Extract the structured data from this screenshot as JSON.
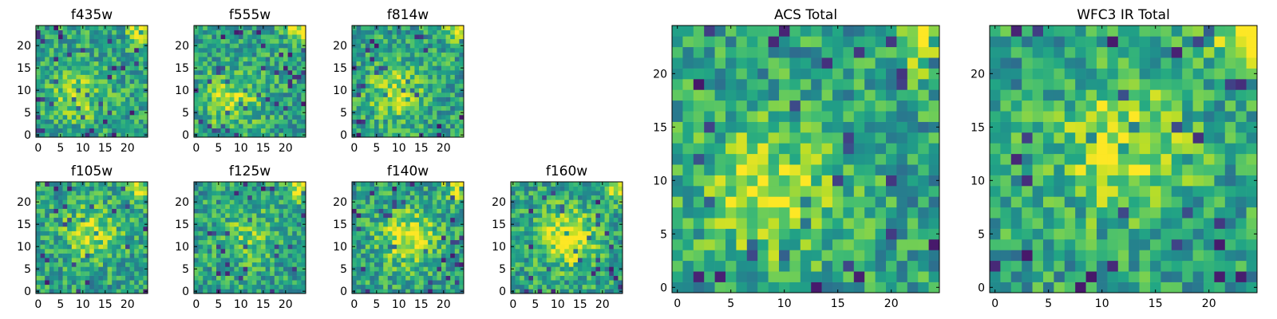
{
  "chart_data": [
    {
      "type": "heatmap",
      "title": "f435w",
      "xticks": [
        0,
        5,
        10,
        15,
        20
      ],
      "yticks": [
        0,
        5,
        10,
        15,
        20
      ],
      "grid_size": 25,
      "colormap": "viridis",
      "seed": 11,
      "blob": [
        9,
        9,
        0.25
      ]
    },
    {
      "type": "heatmap",
      "title": "f555w",
      "xticks": [
        0,
        5,
        10,
        15,
        20
      ],
      "yticks": [
        0,
        5,
        10,
        15,
        20
      ],
      "grid_size": 25,
      "colormap": "viridis",
      "seed": 23,
      "blob": [
        8,
        8,
        0.3
      ]
    },
    {
      "type": "heatmap",
      "title": "f814w",
      "xticks": [
        0,
        5,
        10,
        15,
        20
      ],
      "yticks": [
        0,
        5,
        10,
        15,
        20
      ],
      "grid_size": 25,
      "colormap": "viridis",
      "seed": 37,
      "blob": [
        9,
        10,
        0.3
      ]
    },
    {
      "type": "heatmap",
      "title": "f105w",
      "xticks": [
        0,
        5,
        10,
        15,
        20
      ],
      "yticks": [
        0,
        5,
        10,
        15,
        20
      ],
      "grid_size": 25,
      "colormap": "viridis",
      "seed": 41,
      "blob": [
        12,
        13,
        0.3
      ]
    },
    {
      "type": "heatmap",
      "title": "f125w",
      "xticks": [
        0,
        5,
        10,
        15,
        20
      ],
      "yticks": [
        0,
        5,
        10,
        15,
        20
      ],
      "grid_size": 25,
      "colormap": "viridis",
      "seed": 53,
      "blob": [
        12,
        12,
        0.2
      ]
    },
    {
      "type": "heatmap",
      "title": "f140w",
      "xticks": [
        0,
        5,
        10,
        15,
        20
      ],
      "yticks": [
        0,
        5,
        10,
        15,
        20
      ],
      "grid_size": 25,
      "colormap": "viridis",
      "seed": 67,
      "blob": [
        12,
        12,
        0.4
      ]
    },
    {
      "type": "heatmap",
      "title": "f160w",
      "xticks": [
        0,
        5,
        10,
        15,
        20
      ],
      "yticks": [
        0,
        5,
        10,
        15,
        20
      ],
      "grid_size": 25,
      "colormap": "viridis",
      "seed": 79,
      "blob": [
        12,
        12,
        0.45
      ]
    },
    {
      "type": "heatmap",
      "title": "ACS Total",
      "xticks": [
        0,
        5,
        10,
        15,
        20
      ],
      "yticks": [
        0,
        5,
        10,
        15,
        20
      ],
      "grid_size": 25,
      "colormap": "viridis",
      "seed": 97,
      "blob": [
        9,
        9,
        0.35
      ]
    },
    {
      "type": "heatmap",
      "title": "WFC3 IR Total",
      "xticks": [
        0,
        5,
        10,
        15,
        20
      ],
      "yticks": [
        0,
        5,
        10,
        15,
        20
      ],
      "grid_size": 25,
      "colormap": "viridis",
      "seed": 113,
      "blob": [
        12,
        13,
        0.35
      ]
    }
  ]
}
